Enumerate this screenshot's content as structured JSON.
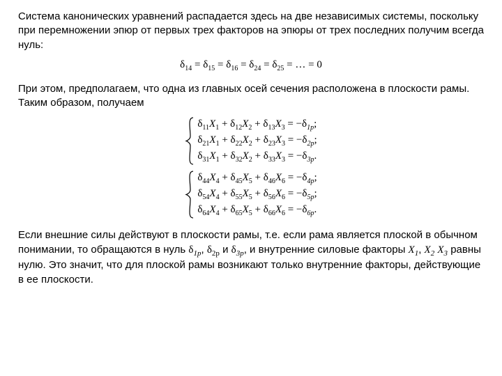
{
  "colors": {
    "text": "#000000",
    "background": "#ffffff"
  },
  "typography": {
    "body_font": "Arial",
    "body_size_pt": 11,
    "math_font": "Times New Roman",
    "math_size_pt": 11
  },
  "para1": "Система канонических уравнений распадается здесь на две независимых системы, поскольку при перемножении эпюр от первых трех факторов на эпюры от трех последних получим всегда нуль:",
  "eq_zero_line": "δ₁₄ = δ₁₅ = δ₁₆ = δ₂₄ = δ₂₅ = … = 0",
  "eq_zero": {
    "delta": "δ",
    "pairs": [
      "14",
      "15",
      "16",
      "24",
      "25"
    ],
    "tail": "= … = 0"
  },
  "para2a": "При этом, предполагаем, что одна из главных осей сечения расположена в плоскости рамы.",
  "para2b": "Таким образом, получаем",
  "system1": {
    "rows": [
      {
        "terms": [
          {
            "d": "11",
            "x": "1",
            "s": "+"
          },
          {
            "d": "12",
            "x": "2",
            "s": "+"
          },
          {
            "d": "13",
            "x": "3"
          }
        ],
        "rhs_sign": "−",
        "rhs": "1p"
      },
      {
        "terms": [
          {
            "d": "21",
            "x": "1",
            "s": "+"
          },
          {
            "d": "22",
            "x": "2",
            "s": "+"
          },
          {
            "d": "23",
            "x": "3"
          }
        ],
        "rhs_sign": "−",
        "rhs": "2p"
      },
      {
        "terms": [
          {
            "d": "31",
            "x": "1",
            "s": "+"
          },
          {
            "d": "32",
            "x": "2",
            "s": "+"
          },
          {
            "d": "33",
            "x": "3"
          }
        ],
        "rhs_sign": "−",
        "rhs": "3p"
      }
    ]
  },
  "system2": {
    "rows": [
      {
        "terms": [
          {
            "d": "44",
            "x": "4",
            "s": "+"
          },
          {
            "d": "45",
            "x": "5",
            "s": "+"
          },
          {
            "d": "46",
            "x": "6"
          }
        ],
        "rhs_sign": "−",
        "rhs": "4p"
      },
      {
        "terms": [
          {
            "d": "54",
            "x": "4",
            "s": "+"
          },
          {
            "d": "55",
            "x": "5",
            "s": "+"
          },
          {
            "d": "56",
            "x": "6"
          }
        ],
        "rhs_sign": "−",
        "rhs": "5p"
      },
      {
        "terms": [
          {
            "d": "64",
            "x": "4",
            "s": "+"
          },
          {
            "d": "65",
            "x": "5",
            "s": "+"
          },
          {
            "d": "66",
            "x": "6"
          }
        ],
        "rhs_sign": "−",
        "rhs": "6p"
      }
    ]
  },
  "para3_pre": "Если внешние силы действуют в плоскости рамы, т.е. если рама является плоской в обычном понимании, то обращаются в нуль ",
  "para3_d1": "δ",
  "para3_s1": "1p",
  "para3_c1": ", ",
  "para3_d2": "δ",
  "para3_s2": "2p",
  "para3_c2": " и  ",
  "para3_d3": "δ",
  "para3_s3": "3p",
  "para3_mid": ", и внутренние силовые факторы ",
  "para3_x1": "X",
  "para3_xs1": "1",
  "para3_x2": "X",
  "para3_xs2": "2",
  "para3_x3": "X",
  "para3_xs3": "3",
  "para3_sep": ", ",
  "para3_post": " равны нулю. Это значит, что для плоской рамы возникают только внутренние факторы, действующие в ее плоскости."
}
